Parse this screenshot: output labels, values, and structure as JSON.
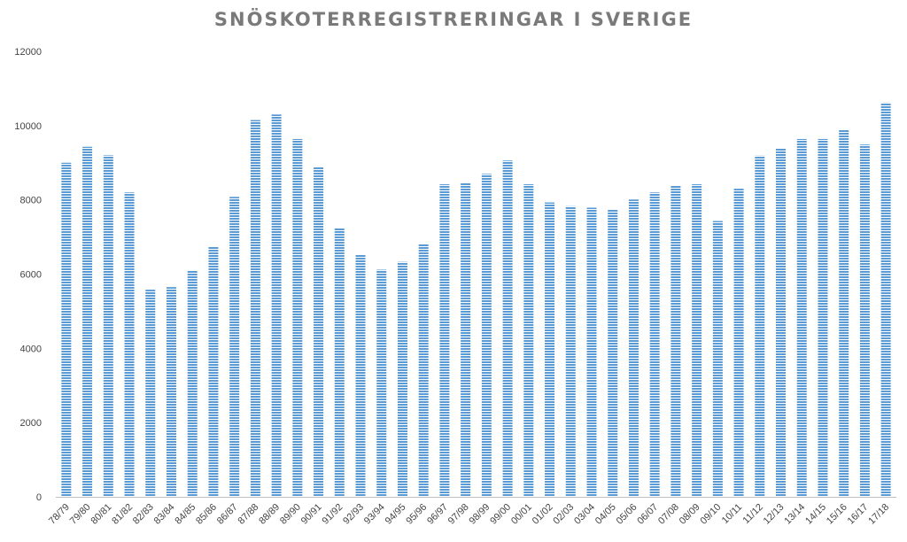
{
  "chart_data": {
    "type": "bar",
    "title": "SNÖSKOTERREGISTRERINGAR I SVERIGE",
    "xlabel": "",
    "ylabel": "",
    "ylim": [
      0,
      12000
    ],
    "yticks": [
      0,
      2000,
      4000,
      6000,
      8000,
      10000,
      12000
    ],
    "grid": false,
    "bar_color": "#5b9bd5",
    "categories": [
      "78/79",
      "79/80",
      "80/81",
      "81/82",
      "82/83",
      "83/84",
      "84/85",
      "85/86",
      "86/87",
      "87/88",
      "88/89",
      "89/90",
      "90/91",
      "91/92",
      "92/93",
      "93/94",
      "94/95",
      "95/96",
      "96/97",
      "97/98",
      "98/99",
      "99/00",
      "00/01",
      "01/02",
      "02/03",
      "03/04",
      "04/05",
      "05/06",
      "06/07",
      "07/08",
      "08/09",
      "09/10",
      "10/11",
      "11/12",
      "12/13",
      "13/14",
      "14/15",
      "15/16",
      "16/17",
      "17/18"
    ],
    "values": [
      9000,
      9430,
      9200,
      8200,
      5580,
      5650,
      6100,
      6730,
      8080,
      10150,
      10300,
      9640,
      8900,
      7240,
      6520,
      6120,
      6330,
      6800,
      8420,
      8450,
      8700,
      9060,
      8420,
      7930,
      7830,
      7790,
      7750,
      8010,
      8200,
      8390,
      8420,
      7430,
      8300,
      9190,
      9400,
      9640,
      9640,
      9900,
      9490,
      10620
    ]
  }
}
